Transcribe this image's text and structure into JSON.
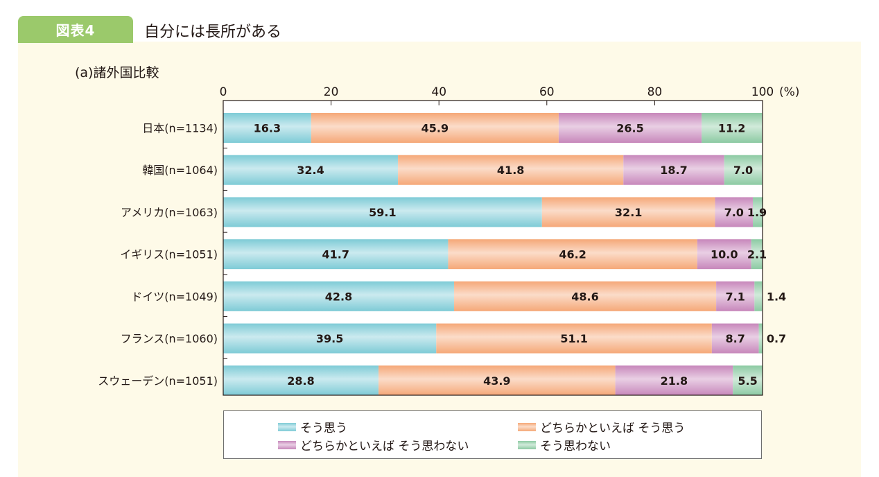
{
  "header": {
    "figure_label": "図表4",
    "title": "自分には長所がある",
    "subtitle": "(a)諸外国比較"
  },
  "chart_data": {
    "type": "bar",
    "orientation": "horizontal",
    "stacked": true,
    "title": "自分には長所がある",
    "subtitle": "(a)諸外国比較",
    "xlabel": "",
    "ylabel": "",
    "x_unit_label": "(%)",
    "xlim": [
      0,
      100
    ],
    "x_ticks": [
      0,
      20,
      40,
      60,
      80,
      100
    ],
    "grid": false,
    "legend_position": "bottom",
    "categories": [
      "日本(n=1134)",
      "韓国(n=1064)",
      "アメリカ(n=1063)",
      "イギリス(n=1051)",
      "ドイツ(n=1049)",
      "フランス(n=1060)",
      "スウェーデン(n=1051)"
    ],
    "series": [
      {
        "name": "そう思う",
        "color": "#7ecbd6",
        "values": [
          16.3,
          32.4,
          59.1,
          41.7,
          42.8,
          39.5,
          28.8
        ]
      },
      {
        "name": "どちらかといえば そう思う",
        "color": "#f5a878",
        "values": [
          45.9,
          41.8,
          32.1,
          46.2,
          48.6,
          51.1,
          43.9
        ]
      },
      {
        "name": "どちらかといえば そう思わない",
        "color": "#c787bb",
        "values": [
          26.5,
          18.7,
          7.0,
          10.0,
          7.1,
          8.7,
          21.8
        ]
      },
      {
        "name": "そう思わない",
        "color": "#8ccaa3",
        "values": [
          11.2,
          7.0,
          1.9,
          2.1,
          1.4,
          0.7,
          5.5
        ]
      }
    ],
    "labels_outside_last_segment": [
      false,
      false,
      false,
      false,
      true,
      true,
      false
    ]
  },
  "legend": {
    "items": [
      {
        "label": "そう思う",
        "color": "#7ecbd6"
      },
      {
        "label": "どちらかといえば そう思う",
        "color": "#f5a878"
      },
      {
        "label": "どちらかといえば そう思わない",
        "color": "#c787bb"
      },
      {
        "label": "そう思わない",
        "color": "#8ccaa3"
      }
    ]
  }
}
